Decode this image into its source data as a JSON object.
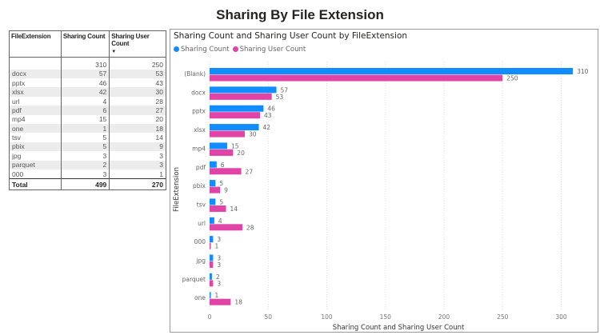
{
  "title": "Sharing By File Extension",
  "table": {
    "headers": [
      "FileExtension",
      "Sharing Count",
      "Sharing User Count"
    ],
    "sort_indicator": "sort-descending-icon",
    "rows": [
      [
        "",
        "310",
        "250"
      ],
      [
        "docx",
        "57",
        "53"
      ],
      [
        "pptx",
        "46",
        "43"
      ],
      [
        "xlsx",
        "42",
        "30"
      ],
      [
        "url",
        "4",
        "28"
      ],
      [
        "pdf",
        "6",
        "27"
      ],
      [
        "mp4",
        "15",
        "20"
      ],
      [
        "one",
        "1",
        "18"
      ],
      [
        "tsv",
        "5",
        "14"
      ],
      [
        "pbix",
        "5",
        "9"
      ],
      [
        "jpg",
        "3",
        "3"
      ],
      [
        "parquet",
        "2",
        "3"
      ],
      [
        "000",
        "3",
        "1"
      ]
    ],
    "total": [
      "Total",
      "499",
      "270"
    ]
  },
  "chart_data": {
    "type": "bar",
    "orientation": "horizontal",
    "title": "Sharing Count and Sharing User Count by FileExtension",
    "xlabel": "Sharing Count and Sharing User Count",
    "ylabel": "FileExtension",
    "xlim": [
      0,
      320
    ],
    "xticks": [
      0,
      50,
      100,
      150,
      200,
      250,
      300
    ],
    "grid": true,
    "legend": "top-left",
    "categories": [
      "(Blank)",
      "docx",
      "pptx",
      "xlsx",
      "mp4",
      "pdf",
      "pbix",
      "tsv",
      "url",
      "000",
      "jpg",
      "parquet",
      "one"
    ],
    "series": [
      {
        "name": "Sharing Count",
        "color": "#118dff",
        "values": [
          310,
          57,
          46,
          42,
          15,
          6,
          5,
          5,
          4,
          3,
          3,
          2,
          1
        ]
      },
      {
        "name": "Sharing User Count",
        "color": "#e044a7",
        "values": [
          250,
          53,
          43,
          30,
          20,
          27,
          9,
          14,
          28,
          1,
          3,
          3,
          18
        ]
      }
    ]
  }
}
